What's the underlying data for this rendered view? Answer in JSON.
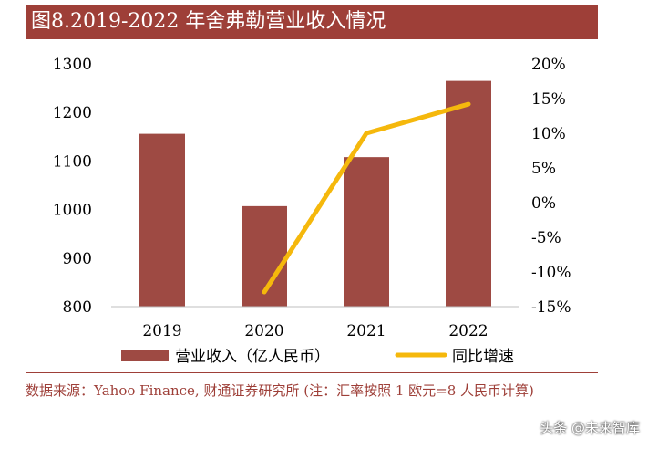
{
  "header": {
    "title": "图8.2019-2022 年舍弗勒营业收入情况"
  },
  "chart_data": {
    "type": "bar",
    "categories": [
      "2019",
      "2020",
      "2021",
      "2022"
    ],
    "series": [
      {
        "name": "营业收入（亿人民币）",
        "type": "bar",
        "axis": "left",
        "color": "#9e4a43",
        "values": [
          1156,
          1007,
          1108,
          1265
        ]
      },
      {
        "name": "同比增速",
        "type": "line",
        "axis": "right",
        "color": "#f5b80c",
        "values": [
          null,
          -12.9,
          10.0,
          14.2
        ]
      }
    ],
    "ylim": [
      800,
      1300
    ],
    "yticks": [
      "800",
      "900",
      "1000",
      "1100",
      "1200",
      "1300"
    ],
    "y2lim": [
      -15,
      20
    ],
    "y2ticks": [
      "-15%",
      "-10%",
      "-5%",
      "0%",
      "5%",
      "10%",
      "15%",
      "20%"
    ],
    "legend": {
      "position": "bottom"
    }
  },
  "footer": {
    "source": "数据来源：Yahoo Finance, 财通证券研究所 (注：汇率按照 1 欧元=8 人民币计算)",
    "watermark": "头条 @未来智库"
  }
}
